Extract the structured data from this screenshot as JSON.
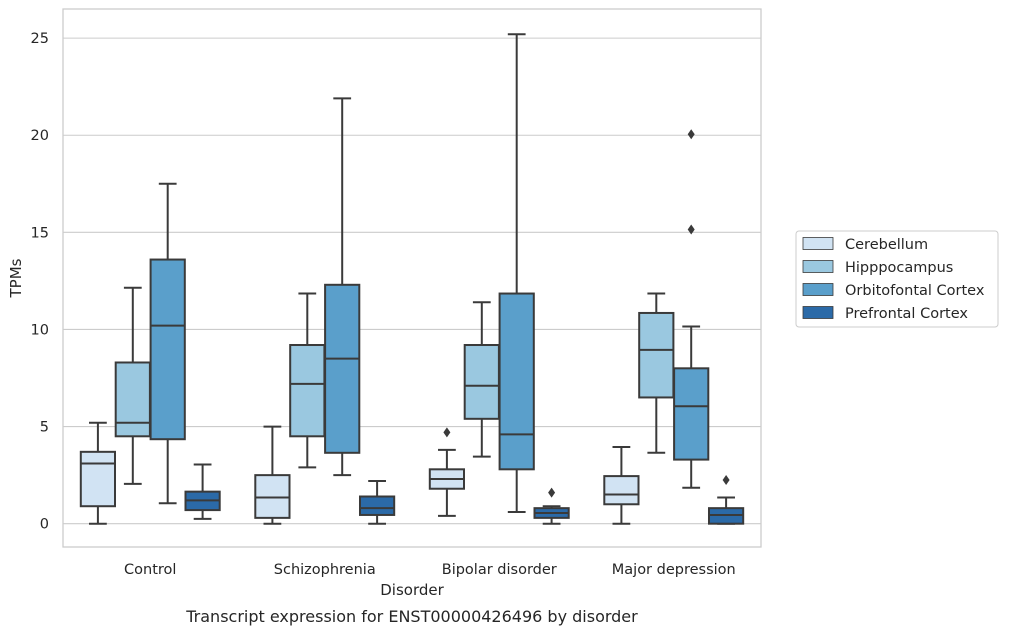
{
  "chart_data": {
    "type": "box",
    "caption": "Transcript expression for ENST00000426496 by disorder",
    "xlabel": "Disorder",
    "ylabel": "TPMs",
    "ylim": [
      -1.2,
      26.5
    ],
    "yticks": [
      0,
      5,
      10,
      15,
      20,
      25
    ],
    "grid": true,
    "legend_position": "right",
    "categories": [
      "Control",
      "Schizophrenia",
      "Bipolar disorder",
      "Major depression"
    ],
    "series": [
      {
        "name": "Cerebellum",
        "color": "#d1e3f3",
        "boxes": [
          {
            "whislo": 0.0,
            "q1": 0.9,
            "med": 3.1,
            "q3": 3.7,
            "whishi": 5.2,
            "fliers": []
          },
          {
            "whislo": 0.0,
            "q1": 0.3,
            "med": 1.35,
            "q3": 2.5,
            "whishi": 5.0,
            "fliers": []
          },
          {
            "whislo": 0.4,
            "q1": 1.8,
            "med": 2.3,
            "q3": 2.8,
            "whishi": 3.8,
            "fliers": [
              4.7
            ]
          },
          {
            "whislo": 0.0,
            "q1": 1.0,
            "med": 1.5,
            "q3": 2.45,
            "whishi": 3.95,
            "fliers": []
          }
        ]
      },
      {
        "name": "Hipppocampus",
        "color": "#9ac8e0",
        "boxes": [
          {
            "whislo": 2.05,
            "q1": 4.5,
            "med": 5.2,
            "q3": 8.3,
            "whishi": 12.15,
            "fliers": []
          },
          {
            "whislo": 2.9,
            "q1": 4.5,
            "med": 7.2,
            "q3": 9.2,
            "whishi": 11.85,
            "fliers": []
          },
          {
            "whislo": 3.45,
            "q1": 5.4,
            "med": 7.1,
            "q3": 9.2,
            "whishi": 11.4,
            "fliers": []
          },
          {
            "whislo": 3.65,
            "q1": 6.5,
            "med": 8.95,
            "q3": 10.85,
            "whishi": 11.85,
            "fliers": []
          }
        ]
      },
      {
        "name": "Orbitofontal Cortex",
        "color": "#5a9fcb",
        "boxes": [
          {
            "whislo": 1.05,
            "q1": 4.35,
            "med": 10.2,
            "q3": 13.6,
            "whishi": 17.5,
            "fliers": []
          },
          {
            "whislo": 2.5,
            "q1": 3.65,
            "med": 8.5,
            "q3": 12.3,
            "whishi": 21.9,
            "fliers": []
          },
          {
            "whislo": 0.6,
            "q1": 2.8,
            "med": 4.6,
            "q3": 11.85,
            "whishi": 25.2,
            "fliers": []
          },
          {
            "whislo": 1.85,
            "q1": 3.3,
            "med": 6.05,
            "q3": 8.0,
            "whishi": 10.15,
            "fliers": [
              15.15,
              20.05
            ]
          }
        ]
      },
      {
        "name": "Prefrontal Cortex",
        "color": "#2b6aa8",
        "boxes": [
          {
            "whislo": 0.25,
            "q1": 0.7,
            "med": 1.2,
            "q3": 1.65,
            "whishi": 3.05,
            "fliers": []
          },
          {
            "whislo": 0.0,
            "q1": 0.45,
            "med": 0.8,
            "q3": 1.4,
            "whishi": 2.2,
            "fliers": []
          },
          {
            "whislo": 0.0,
            "q1": 0.3,
            "med": 0.55,
            "q3": 0.8,
            "whishi": 0.9,
            "fliers": [
              1.6
            ]
          },
          {
            "whislo": 0.0,
            "q1": 0.0,
            "med": 0.45,
            "q3": 0.8,
            "whishi": 1.35,
            "fliers": [
              2.25
            ]
          }
        ]
      }
    ]
  }
}
